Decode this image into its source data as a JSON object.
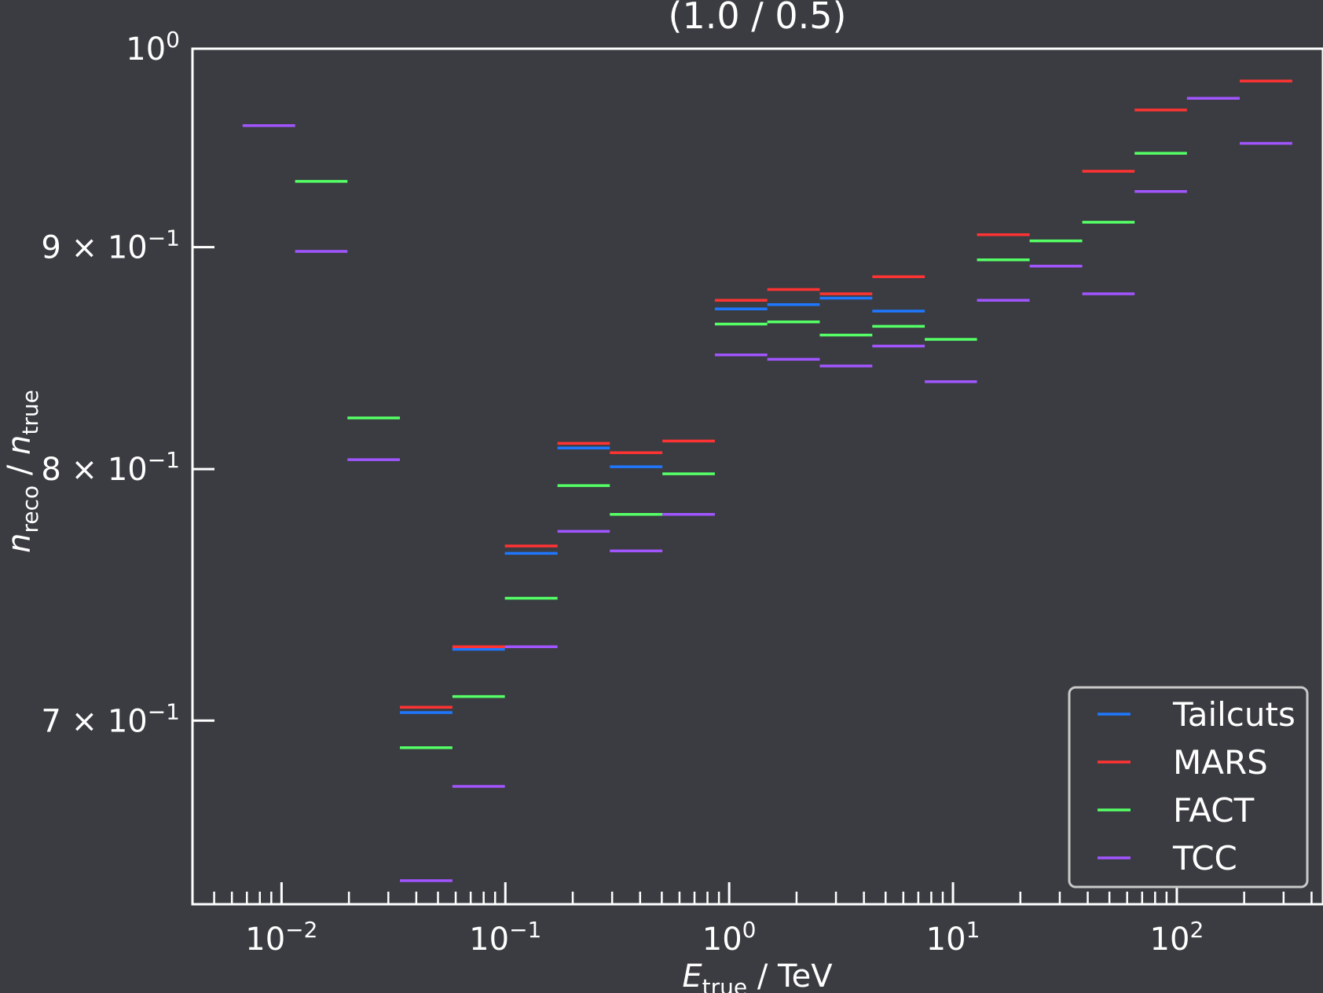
{
  "chart_data": {
    "type": "line",
    "title": "(1.0 / 0.5)",
    "xlabel": {
      "main": "E",
      "sub": "true",
      "rest": " / TeV"
    },
    "ylabel": {
      "n1": "n",
      "sub1": "reco",
      "sep": " / ",
      "n2": "n",
      "sub2": "true"
    },
    "x_scale": "log",
    "y_scale": "log",
    "xlim": [
      0.004,
      450
    ],
    "ylim": [
      0.635,
      1.0
    ],
    "grid": false,
    "legend_placement": "lower-right",
    "x_ticks": [
      {
        "base": "10",
        "exp": "−2",
        "value": 0.01
      },
      {
        "base": "10",
        "exp": "−1",
        "value": 0.1
      },
      {
        "base": "10",
        "exp": "0",
        "value": 1
      },
      {
        "base": "10",
        "exp": "1",
        "value": 10
      },
      {
        "base": "10",
        "exp": "2",
        "value": 100
      }
    ],
    "y_ticks": [
      {
        "mant": "",
        "base": "10",
        "exp": "0",
        "value": 1.0
      },
      {
        "mant": "9 × ",
        "base": "10",
        "exp": "−1",
        "value": 0.9
      },
      {
        "mant": "8 × ",
        "base": "10",
        "exp": "−1",
        "value": 0.8
      },
      {
        "mant": "7 × ",
        "base": "10",
        "exp": "−1",
        "value": 0.7
      }
    ],
    "bin_edges": [
      0.0067,
      0.0115,
      0.0197,
      0.0338,
      0.058,
      0.0995,
      0.171,
      0.293,
      0.503,
      0.863,
      1.48,
      2.54,
      4.36,
      7.48,
      12.8,
      22.0,
      37.8,
      64.8,
      111.0,
      191.0,
      328.0
    ],
    "series": [
      {
        "name": "Tailcuts",
        "color": "#1f77ff",
        "bins": [
          3,
          4,
          5,
          6,
          7,
          9,
          10,
          11,
          12
        ],
        "values": [
          0.703,
          0.727,
          0.765,
          0.809,
          0.801,
          0.871,
          0.873,
          0.876,
          0.87
        ]
      },
      {
        "name": "MARS",
        "color": "#ff3333",
        "bins": [
          3,
          4,
          5,
          6,
          7,
          8,
          9,
          10,
          11,
          12,
          14,
          16,
          17,
          19
        ],
        "values": [
          0.705,
          0.728,
          0.768,
          0.811,
          0.807,
          0.812,
          0.875,
          0.88,
          0.878,
          0.886,
          0.906,
          0.937,
          0.968,
          0.983
        ]
      },
      {
        "name": "FACT",
        "color": "#55ff66",
        "bins": [
          1,
          2,
          3,
          4,
          5,
          6,
          7,
          8,
          9,
          10,
          11,
          12,
          13,
          14,
          15,
          16,
          17
        ],
        "values": [
          0.932,
          0.822,
          0.69,
          0.709,
          0.747,
          0.793,
          0.781,
          0.798,
          0.864,
          0.865,
          0.859,
          0.863,
          0.857,
          0.894,
          0.903,
          0.912,
          0.946
        ]
      },
      {
        "name": "TCC",
        "color": "#a155ff",
        "bins": [
          0,
          1,
          2,
          3,
          4,
          5,
          6,
          7,
          8,
          9,
          10,
          11,
          12,
          13,
          14,
          15,
          16,
          17,
          18,
          19
        ],
        "values": [
          0.96,
          0.898,
          0.804,
          0.643,
          0.676,
          0.728,
          0.774,
          0.766,
          0.781,
          0.85,
          0.848,
          0.845,
          0.854,
          0.838,
          0.875,
          0.891,
          0.878,
          0.927,
          0.974,
          0.951
        ]
      }
    ]
  }
}
